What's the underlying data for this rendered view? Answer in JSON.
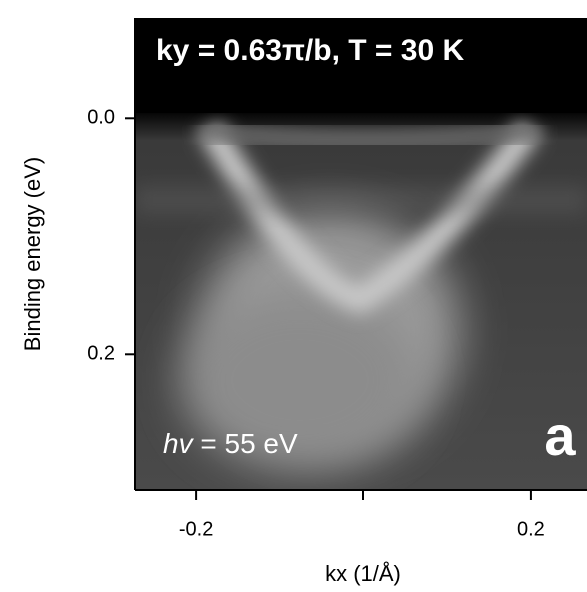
{
  "chart_data": {
    "type": "image",
    "title": "ky = 0.63π/b, T = 30 K",
    "annotation": {
      "symbol": "hv",
      "text": "= 55 eV"
    },
    "panel_label": "a",
    "x_label": "kx (1/Å)",
    "y_label": "Binding energy (eV)",
    "xlim": [
      -0.273,
      0.267
    ],
    "xticks": [
      -0.2,
      0.2
    ],
    "ylim": [
      -0.085,
      0.315
    ],
    "y_inverted": true,
    "yticks": [
      {
        "value": 0,
        "label": "0.0"
      },
      0.2
    ]
  }
}
